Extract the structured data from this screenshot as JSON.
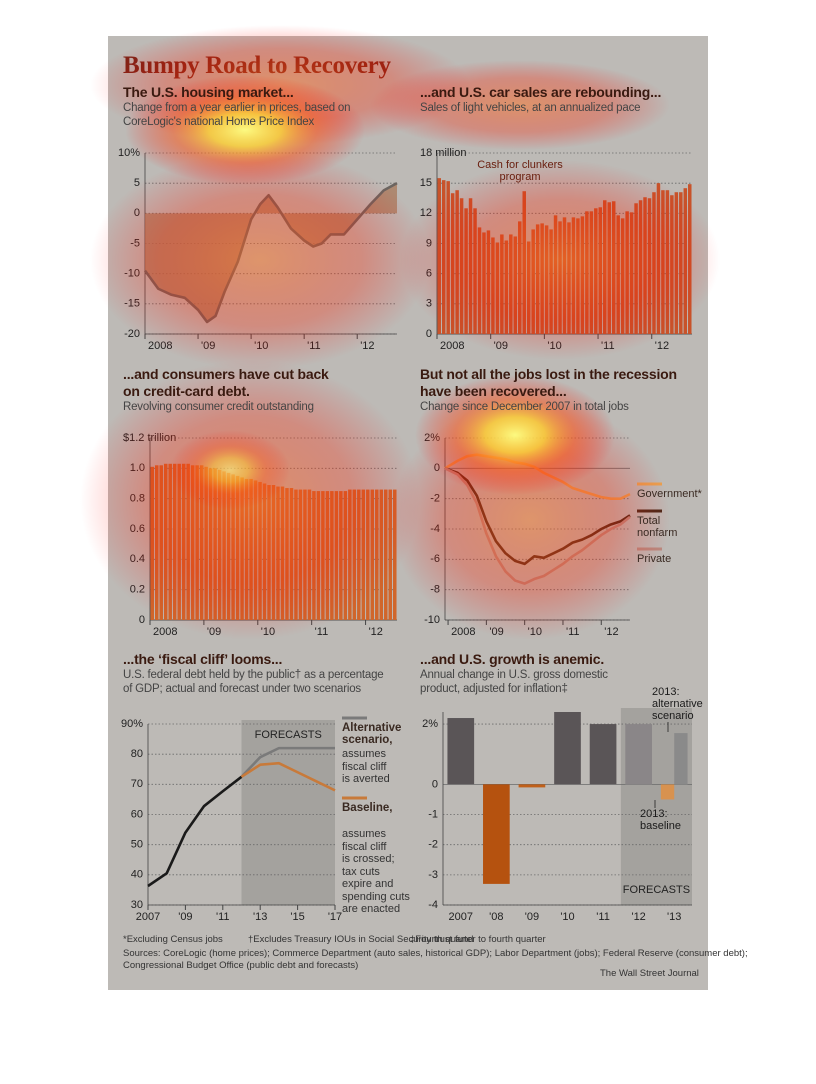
{
  "title": "Bumpy Road to Recovery",
  "chart_data": [
    {
      "type": "line",
      "title": [
        "The U.S. housing market..."
      ],
      "subtitle": [
        "Change from a year earlier in prices, based on",
        "CoreLogic's national Home Price Index"
      ],
      "x": [
        2008.0,
        2008.25,
        2008.5,
        2008.75,
        2009.0,
        2009.17,
        2009.33,
        2009.5,
        2009.75,
        2010.0,
        2010.17,
        2010.33,
        2010.5,
        2010.75,
        2011.0,
        2011.17,
        2011.33,
        2011.5,
        2011.75,
        2012.0,
        2012.25,
        2012.5,
        2012.75
      ],
      "series": [
        {
          "color": "#6b6560",
          "fill_color": "#a8785a",
          "area": true,
          "values": [
            -9.5,
            -12.5,
            -13.5,
            -14,
            -16,
            -18,
            -17,
            -13,
            -8,
            -1,
            1.5,
            3,
            1,
            -2.5,
            -4.5,
            -5.5,
            -5,
            -3.5,
            -3.5,
            -1,
            1.5,
            3.8,
            5
          ]
        }
      ],
      "xlim": [
        2008,
        2012.75
      ],
      "xticks": [
        2008,
        {
          "value": 2009,
          "label": "'09"
        },
        {
          "value": 2010,
          "label": "'10"
        },
        {
          "value": 2011,
          "label": "'11"
        },
        {
          "value": 2012,
          "label": "'12"
        }
      ],
      "ylim": [
        -20,
        10
      ],
      "yticks": [
        -20,
        -15,
        -10,
        -5,
        0,
        5,
        {
          "value": 10,
          "label": "10%"
        }
      ],
      "grid": true
    },
    {
      "type": "bar",
      "title": [
        "...and U.S. car sales are rebounding..."
      ],
      "subtitle": [
        "Sales of light vehicles, at an annualized pace"
      ],
      "categories": [
        "2008",
        null,
        null,
        null,
        null,
        null,
        null,
        null,
        null,
        null,
        null,
        null,
        "'09",
        null,
        null,
        null,
        null,
        null,
        null,
        null,
        null,
        null,
        null,
        null,
        "'10",
        null,
        null,
        null,
        null,
        null,
        null,
        null,
        null,
        null,
        null,
        null,
        "'11",
        null,
        null,
        null,
        null,
        null,
        null,
        null,
        null,
        null,
        null,
        null,
        "'12",
        null,
        null,
        null,
        null,
        null,
        null,
        null,
        null
      ],
      "values": [
        15.5,
        15.3,
        15.2,
        14.0,
        14.3,
        13.5,
        12.5,
        13.5,
        12.5,
        10.6,
        10.1,
        10.3,
        9.6,
        9.1,
        9.9,
        9.3,
        9.9,
        9.7,
        11.2,
        14.2,
        9.2,
        10.4,
        10.9,
        11.0,
        10.8,
        10.4,
        11.8,
        11.2,
        11.6,
        11.1,
        11.6,
        11.5,
        11.7,
        12.2,
        12.2,
        12.5,
        12.6,
        13.3,
        13.1,
        13.2,
        11.8,
        11.5,
        12.2,
        12.1,
        13.0,
        13.3,
        13.6,
        13.5,
        14.1,
        15.0,
        14.3,
        14.3,
        13.8,
        14.1,
        14.1,
        14.5,
        14.9
      ],
      "color": "#c8532a",
      "annotations": [
        "Cash for clunkers program"
      ],
      "ylim": [
        0,
        18
      ],
      "yticks": [
        0,
        3,
        6,
        9,
        12,
        15,
        {
          "value": 18,
          "label": "18 million"
        }
      ],
      "grid": true
    },
    {
      "type": "bar",
      "title": [
        "...and consumers have cut back",
        "on credit-card debt."
      ],
      "subtitle": [
        "Revolving consumer credit outstanding"
      ],
      "categories": [
        "2008",
        null,
        null,
        null,
        null,
        null,
        null,
        null,
        null,
        null,
        null,
        null,
        "'09",
        null,
        null,
        null,
        null,
        null,
        null,
        null,
        null,
        null,
        null,
        null,
        "'10",
        null,
        null,
        null,
        null,
        null,
        null,
        null,
        null,
        null,
        null,
        null,
        "'11",
        null,
        null,
        null,
        null,
        null,
        null,
        null,
        null,
        null,
        null,
        null,
        "'12",
        null,
        null,
        null,
        null,
        null,
        null
      ],
      "values": [
        1.01,
        1.02,
        1.02,
        1.03,
        1.03,
        1.03,
        1.03,
        1.03,
        1.03,
        1.02,
        1.02,
        1.02,
        1.01,
        1.0,
        1.0,
        0.99,
        0.98,
        0.97,
        0.96,
        0.95,
        0.94,
        0.93,
        0.93,
        0.92,
        0.91,
        0.9,
        0.89,
        0.89,
        0.88,
        0.88,
        0.87,
        0.87,
        0.86,
        0.86,
        0.86,
        0.86,
        0.85,
        0.85,
        0.85,
        0.85,
        0.85,
        0.85,
        0.85,
        0.85,
        0.86,
        0.86,
        0.86,
        0.86,
        0.86,
        0.86,
        0.86,
        0.86,
        0.86,
        0.86,
        0.86
      ],
      "color": "#d0662b",
      "ylim": [
        0,
        1.2
      ],
      "yticks": [
        0,
        0.2,
        0.4,
        0.6,
        0.8,
        {
          "value": 1.0,
          "label": "1.0"
        },
        {
          "value": 1.2,
          "label": "$1.2 trillion"
        }
      ],
      "grid": true
    },
    {
      "type": "line",
      "title": [
        "But not all the jobs lost in the recession",
        "have been recovered..."
      ],
      "subtitle": [
        "Change since December 2007 in total jobs"
      ],
      "x": [
        2007.92,
        2008.25,
        2008.5,
        2008.75,
        2009.0,
        2009.25,
        2009.5,
        2009.75,
        2010.0,
        2010.25,
        2010.5,
        2010.75,
        2011.0,
        2011.25,
        2011.5,
        2011.75,
        2012.0,
        2012.25,
        2012.5,
        2012.75
      ],
      "series": [
        {
          "name": "Government*",
          "color": "#e8a050",
          "values": [
            0,
            0.5,
            0.8,
            0.9,
            0.8,
            0.7,
            0.6,
            0.4,
            0.3,
            0.1,
            -0.3,
            -0.6,
            -0.9,
            -1.3,
            -1.5,
            -1.7,
            -1.9,
            -2.0,
            -2.0,
            -1.7
          ]
        },
        {
          "name": "Total nonfarm",
          "color": "#4a2a1a",
          "values": [
            0,
            -0.3,
            -0.8,
            -1.8,
            -3.5,
            -4.8,
            -5.6,
            -6.1,
            -6.3,
            -5.8,
            -5.9,
            -5.6,
            -5.3,
            -4.9,
            -4.7,
            -4.4,
            -4.0,
            -3.7,
            -3.5,
            -3.1
          ]
        },
        {
          "name": "Private",
          "color": "#b88a80",
          "values": [
            0,
            -0.4,
            -1.1,
            -2.3,
            -4.3,
            -5.8,
            -6.8,
            -7.4,
            -7.6,
            -7.3,
            -7.1,
            -6.7,
            -6.3,
            -5.8,
            -5.4,
            -4.9,
            -4.4,
            -4.0,
            -3.7,
            -3.2
          ]
        }
      ],
      "xlim": [
        2007.92,
        2012.75
      ],
      "xticks": [
        2008,
        {
          "value": 2009,
          "label": "'09"
        },
        {
          "value": 2010,
          "label": "'10"
        },
        {
          "value": 2011,
          "label": "'11"
        },
        {
          "value": 2012,
          "label": "'12"
        }
      ],
      "ylim": [
        -10,
        2
      ],
      "yticks": [
        -10,
        -8,
        -6,
        -4,
        -2,
        0,
        {
          "value": 2,
          "label": "2%"
        }
      ],
      "grid": true
    },
    {
      "type": "line",
      "title": [
        "...the ‘fiscal cliff’ looms..."
      ],
      "subtitle": [
        "U.S. federal debt held by the public† as a percentage",
        "of GDP; actual and forecast under two scenarios"
      ],
      "x": [
        2007,
        2008,
        2009,
        2010,
        2011,
        2012,
        2013,
        2014,
        2015,
        2016,
        2017
      ],
      "series": [
        {
          "color": "#1a1a1a",
          "values": [
            36.3,
            40.5,
            54,
            62.8,
            67.7,
            72.5,
            null,
            null,
            null,
            null,
            null
          ]
        },
        {
          "name": "Alternative scenario,",
          "description": [
            "assumes",
            "fiscal cliff",
            "is averted"
          ],
          "color": "#7a7a7a",
          "values": [
            null,
            null,
            null,
            null,
            null,
            72.5,
            79,
            82,
            82,
            82,
            82
          ]
        },
        {
          "name": "Baseline,",
          "description": [
            "assumes",
            "fiscal cliff",
            "is crossed;",
            "tax cuts",
            "expire and",
            "spending cuts",
            "are enacted"
          ],
          "color": "#c87a3a",
          "values": [
            null,
            null,
            null,
            null,
            null,
            72.5,
            76.5,
            77,
            74,
            71,
            68
          ]
        }
      ],
      "forecast": {
        "start": 2012,
        "label": "FORECASTS"
      },
      "xlim": [
        2007,
        2017
      ],
      "xticks": [
        2007,
        {
          "value": 2009,
          "label": "'09"
        },
        {
          "value": 2011,
          "label": "'11"
        },
        {
          "value": 2013,
          "label": "'13"
        },
        {
          "value": 2015,
          "label": "'15"
        },
        {
          "value": 2017,
          "label": "'17"
        }
      ],
      "ylim": [
        30,
        90
      ],
      "yticks": [
        30,
        40,
        50,
        60,
        70,
        80,
        {
          "value": 90,
          "label": "90%"
        }
      ],
      "grid": true
    },
    {
      "type": "bar",
      "title": [
        "...and U.S. growth is anemic."
      ],
      "subtitle": [
        "Annual change in U.S. gross domestic",
        "product, adjusted for inflation‡"
      ],
      "categories": [
        "2007",
        "'08",
        "'09",
        "'10",
        "'11",
        "'12",
        "'13"
      ],
      "series": [
        {
          "colors": [
            "#5a5557",
            "#b5520f",
            "#c0601a",
            "#5a5557",
            "#5a5557",
            "#8a8688",
            "#8a8688"
          ],
          "values": [
            2.2,
            -3.3,
            -0.1,
            2.4,
            2.0,
            2.0,
            null
          ]
        },
        {
          "name": "2013: baseline",
          "color": "#d8924f",
          "values": [
            null,
            null,
            null,
            null,
            null,
            null,
            -0.5
          ]
        },
        {
          "name": "2013: alternative scenario",
          "color": "#8a8a8a",
          "values": [
            null,
            null,
            null,
            null,
            null,
            null,
            1.7
          ]
        }
      ],
      "forecast": {
        "start": "'12",
        "label": "FORECASTS"
      },
      "ylim": [
        -4,
        2.4
      ],
      "yticks": [
        -4,
        -3,
        -2,
        -1,
        0,
        {
          "value": 2,
          "label": "2%"
        }
      ],
      "grid": true
    }
  ],
  "footnotes": [
    "*Excluding Census jobs",
    "†Excludes Treasury IOUs in Social Security trust fund",
    "‡Fourth quarter to fourth quarter"
  ],
  "sources": [
    "Sources: CoreLogic (home prices); Commerce Department (auto sales, historical GDP); Labor Department (jobs); Federal Reserve (consumer debt);",
    "Congressional Budget Office (public debt and forecasts)"
  ],
  "credit": "The Wall Street Journal"
}
